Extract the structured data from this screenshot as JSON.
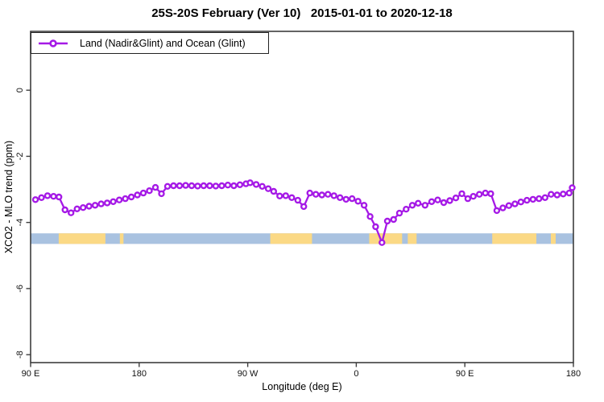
{
  "title": "25S-20S February (Ver 10)   2015-01-01 to 2020-12-18",
  "legend": {
    "label": "Land (Nadir&Glint) and Ocean (Glint)"
  },
  "axes": {
    "x_label": "Longitude (deg E)",
    "y_label": "XCO2 - MLO trend (ppm)"
  },
  "colors": {
    "line": "#a519e6",
    "marker_fill": "#ffffff",
    "ocean": "#a9c2e0",
    "land": "#fbd985",
    "axis": "#3d3d3d",
    "text": "#000000"
  },
  "chart_data": {
    "type": "line",
    "title": "25S-20S February (Ver 10)   2015-01-01 to 2020-12-18",
    "xlabel": "Longitude (deg E)",
    "ylabel": "XCO2 - MLO trend (ppm)",
    "xlim": [
      90,
      540
    ],
    "ylim": [
      -8.24,
      1.78
    ],
    "x_axis_note": "longitude axis starts at 90E and wraps eastward: 180=180, 270=90W, 360=0, 450=90E, 540=180",
    "x_ticks": [
      {
        "v": 90,
        "label": "90 E"
      },
      {
        "v": 180,
        "label": "180"
      },
      {
        "v": 270,
        "label": "90 W"
      },
      {
        "v": 360,
        "label": "0"
      },
      {
        "v": 450,
        "label": "90 E"
      },
      {
        "v": 540,
        "label": "180"
      }
    ],
    "y_ticks": [
      {
        "v": 0,
        "label": "0"
      },
      {
        "v": -2,
        "label": "-2"
      },
      {
        "v": -4,
        "label": "-4"
      },
      {
        "v": -6,
        "label": "-6"
      },
      {
        "v": -8,
        "label": "-8"
      }
    ],
    "legend_position": "top-left",
    "grid": false,
    "map_strip": {
      "value_top": -4.33,
      "value_bottom": -4.65,
      "ocean_range": [
        90,
        540
      ],
      "land_segments": [
        {
          "name": "australia",
          "from": 113.3,
          "to": 152.0
        },
        {
          "name": "new-caledonia",
          "from": 164.0,
          "to": 167.0
        },
        {
          "name": "south-america",
          "from": 288.7,
          "to": 323.3
        },
        {
          "name": "africa",
          "from": 370.7,
          "to": 398.0
        },
        {
          "name": "madagascar",
          "from": 402.7,
          "to": 410.0
        },
        {
          "name": "australia-repeat",
          "from": 472.7,
          "to": 509.3
        },
        {
          "name": "new-caledonia-repeat",
          "from": 521.3,
          "to": 525.3
        }
      ]
    },
    "series": [
      {
        "name": "Land (Nadir&Glint) and Ocean (Glint)",
        "points": [
          [
            94,
            -3.31
          ],
          [
            99,
            -3.25
          ],
          [
            104,
            -3.19
          ],
          [
            109,
            -3.21
          ],
          [
            113.5,
            -3.23
          ],
          [
            118.5,
            -3.62
          ],
          [
            123.5,
            -3.71
          ],
          [
            128.5,
            -3.59
          ],
          [
            133.5,
            -3.55
          ],
          [
            138.5,
            -3.51
          ],
          [
            143.5,
            -3.48
          ],
          [
            148.5,
            -3.44
          ],
          [
            153.5,
            -3.41
          ],
          [
            158.5,
            -3.37
          ],
          [
            163.5,
            -3.32
          ],
          [
            168.5,
            -3.28
          ],
          [
            173.5,
            -3.23
          ],
          [
            178.5,
            -3.17
          ],
          [
            183.5,
            -3.11
          ],
          [
            188.5,
            -3.04
          ],
          [
            193.5,
            -2.94
          ],
          [
            198.5,
            -3.13
          ],
          [
            203.5,
            -2.91
          ],
          [
            208.5,
            -2.89
          ],
          [
            213.5,
            -2.89
          ],
          [
            218.5,
            -2.88
          ],
          [
            223.5,
            -2.89
          ],
          [
            228.5,
            -2.9
          ],
          [
            233.5,
            -2.89
          ],
          [
            238.5,
            -2.89
          ],
          [
            243.5,
            -2.9
          ],
          [
            248.5,
            -2.89
          ],
          [
            253.5,
            -2.87
          ],
          [
            258.5,
            -2.89
          ],
          [
            263.5,
            -2.86
          ],
          [
            268.5,
            -2.83
          ],
          [
            272,
            -2.8
          ],
          [
            277,
            -2.85
          ],
          [
            282,
            -2.91
          ],
          [
            287,
            -2.98
          ],
          [
            291.5,
            -3.06
          ],
          [
            296.5,
            -3.2
          ],
          [
            301.5,
            -3.19
          ],
          [
            306.5,
            -3.25
          ],
          [
            311.5,
            -3.33
          ],
          [
            316.5,
            -3.52
          ],
          [
            321.5,
            -3.11
          ],
          [
            326.5,
            -3.15
          ],
          [
            331.5,
            -3.17
          ],
          [
            336.5,
            -3.15
          ],
          [
            341.5,
            -3.19
          ],
          [
            346.5,
            -3.25
          ],
          [
            351.5,
            -3.3
          ],
          [
            356.5,
            -3.28
          ],
          [
            361.5,
            -3.36
          ],
          [
            366.5,
            -3.48
          ],
          [
            371.5,
            -3.82
          ],
          [
            376,
            -4.13
          ],
          [
            381.3,
            -4.61
          ],
          [
            385.8,
            -3.96
          ],
          [
            390.9,
            -3.91
          ],
          [
            395.8,
            -3.72
          ],
          [
            401.3,
            -3.6
          ],
          [
            406.5,
            -3.48
          ],
          [
            411.3,
            -3.42
          ],
          [
            417,
            -3.48
          ],
          [
            422.5,
            -3.37
          ],
          [
            427.5,
            -3.32
          ],
          [
            432.5,
            -3.4
          ],
          [
            437.5,
            -3.34
          ],
          [
            442.5,
            -3.26
          ],
          [
            447.5,
            -3.13
          ],
          [
            452.5,
            -3.28
          ],
          [
            457,
            -3.21
          ],
          [
            462,
            -3.15
          ],
          [
            467,
            -3.11
          ],
          [
            471.5,
            -3.13
          ],
          [
            476.5,
            -3.64
          ],
          [
            481.5,
            -3.56
          ],
          [
            486.5,
            -3.49
          ],
          [
            491.5,
            -3.44
          ],
          [
            496.5,
            -3.38
          ],
          [
            501.5,
            -3.33
          ],
          [
            506.5,
            -3.3
          ],
          [
            511.5,
            -3.28
          ],
          [
            516.5,
            -3.25
          ],
          [
            521.5,
            -3.15
          ],
          [
            526.5,
            -3.17
          ],
          [
            531.5,
            -3.14
          ],
          [
            536.5,
            -3.11
          ],
          [
            539,
            -2.95
          ]
        ]
      }
    ]
  }
}
